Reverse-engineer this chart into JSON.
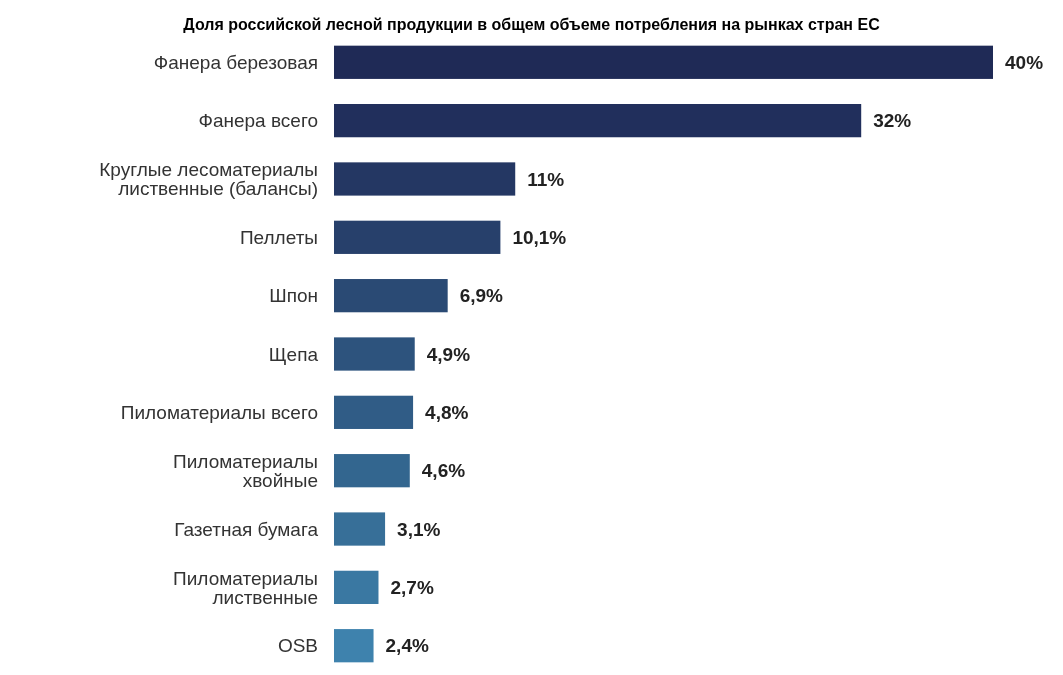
{
  "chart_data": {
    "type": "bar",
    "orientation": "horizontal",
    "title": "Доля российской лесной продукции в общем объеме потребления на рынках стран ЕС",
    "categories": [
      "Фанера березовая",
      "Фанера всего",
      "Круглые лесоматериалы\nлиственные (балансы)",
      "Пеллеты",
      "Шпон",
      "Щепа",
      "Пиломатериалы всего",
      "Пиломатериалы\nхвойные",
      "Газетная бумага",
      "Пиломатериалы\nлиственные",
      "OSB"
    ],
    "values": [
      40,
      32,
      11,
      10.1,
      6.9,
      4.9,
      4.8,
      4.6,
      3.1,
      2.7,
      2.4
    ],
    "value_labels": [
      "40%",
      "32%",
      "11%",
      "10,1%",
      "6,9%",
      "4,9%",
      "4,8%",
      "4,6%",
      "3,1%",
      "2,7%",
      "2,4%"
    ],
    "colors": [
      "#1f2a56",
      "#212f5c",
      "#243763",
      "#27406b",
      "#2a4a74",
      "#2d537d",
      "#305c86",
      "#33668f",
      "#376f98",
      "#3a78a2",
      "#3e82ad"
    ],
    "grid": false
  }
}
